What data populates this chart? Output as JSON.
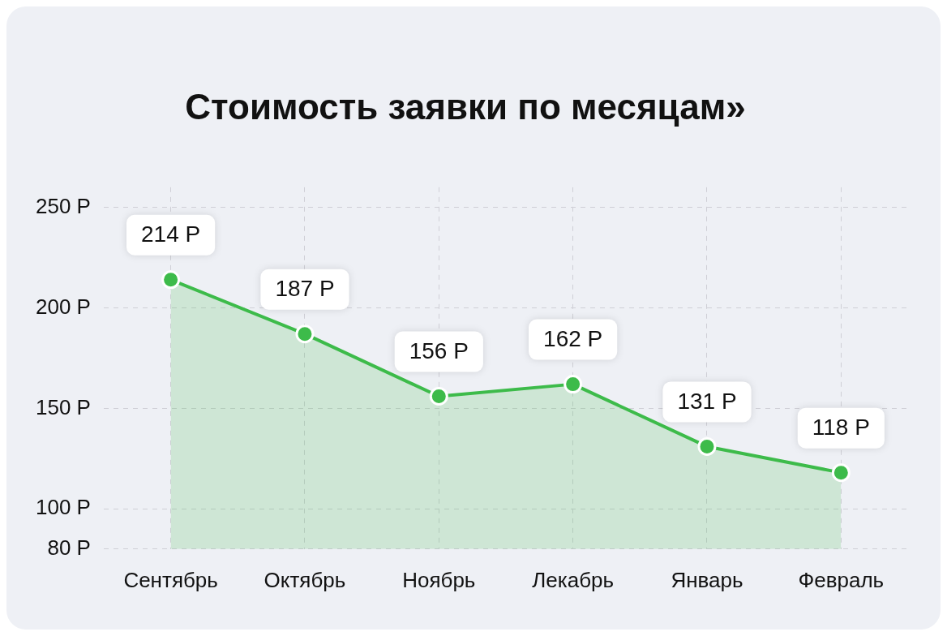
{
  "chart_data": {
    "type": "area",
    "title": "Стоимость заявки по месяцам»",
    "categories": [
      "Сентябрь",
      "Октябрь",
      "Ноябрь",
      "Лекабрь",
      "Январь",
      "Февраль"
    ],
    "series": [
      {
        "color": "#3dbb4a",
        "values": [
          214,
          187,
          156,
          162,
          131,
          118
        ],
        "value_labels": [
          "214 Р",
          "187 Р",
          "156 Р",
          "162 Р",
          "131 Р",
          "118 Р"
        ]
      }
    ],
    "ylim": [
      80,
      260
    ],
    "yticks": [
      {
        "value": 80,
        "label": "80 Р"
      },
      {
        "value": 100,
        "label": "100 Р"
      },
      {
        "value": 150,
        "label": "150 Р"
      },
      {
        "value": 200,
        "label": "200 Р"
      },
      {
        "value": 250,
        "label": "250 Р"
      }
    ],
    "grid": true,
    "legend": false,
    "marker": "circle",
    "line_style": "solid"
  }
}
